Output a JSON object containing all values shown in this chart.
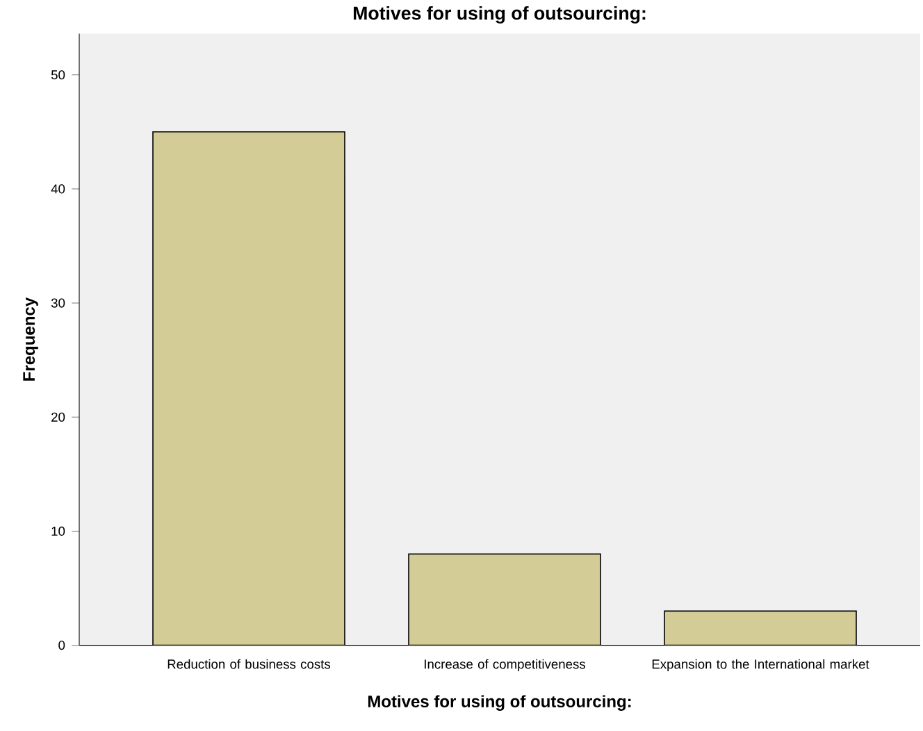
{
  "chart_data": {
    "type": "bar",
    "title": "Motives for using of outsourcing:",
    "xlabel": "Motives for using of outsourcing:",
    "ylabel": "Frequency",
    "categories": [
      "Reduction of business costs",
      "Increase of competitiveness",
      "Expansion to the International market"
    ],
    "values": [
      45,
      8,
      3
    ],
    "color": "#d4cc96",
    "ylim": [
      0,
      53.6
    ],
    "yticks": [
      0,
      10,
      20,
      30,
      40,
      50
    ],
    "grid": false
  }
}
